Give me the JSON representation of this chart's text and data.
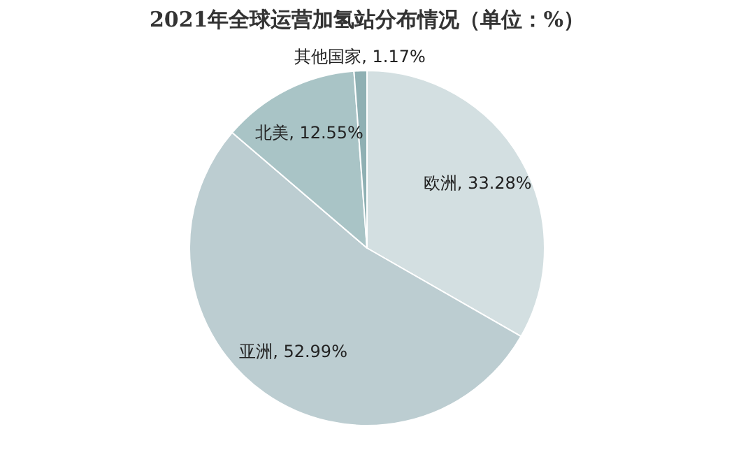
{
  "chart_data": {
    "type": "pie",
    "title": "2021年全球运营加氢站分布情况（单位：%）",
    "categories": [
      "欧洲",
      "亚洲",
      "北美",
      "其他国家"
    ],
    "values": [
      33.28,
      52.99,
      12.55,
      1.17
    ],
    "value_labels": [
      "33.28%",
      "52.99%",
      "12.55%",
      "1.17%"
    ],
    "colors": [
      "#d3dfe1",
      "#bccdd1",
      "#a9c4c6",
      "#8fb0b3"
    ],
    "legend": false
  }
}
